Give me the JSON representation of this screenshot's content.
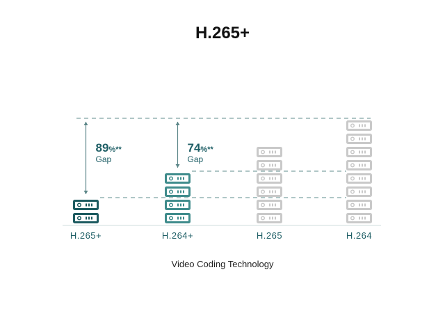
{
  "title": "H.265+",
  "chart_data": {
    "type": "bar",
    "title": "H.265+",
    "xlabel": "Video Coding Technology",
    "ylabel": "",
    "categories": [
      "H.265+",
      "H.264+",
      "H.265",
      "H.264"
    ],
    "values": [
      2,
      4,
      6,
      8
    ],
    "bar_style": "stacked server icons",
    "colors": [
      "#1d5b60",
      "#3f8c8c",
      "#c9c9c9",
      "#c9c9c9"
    ],
    "label_color": "#1f5f66",
    "annotations": [
      {
        "category": "H.265+",
        "value": "89%",
        "suffix": "**",
        "label": "Gap"
      },
      {
        "category": "H.264+",
        "value": "74%",
        "suffix": "**",
        "label": "Gap"
      }
    ],
    "grid": false
  }
}
